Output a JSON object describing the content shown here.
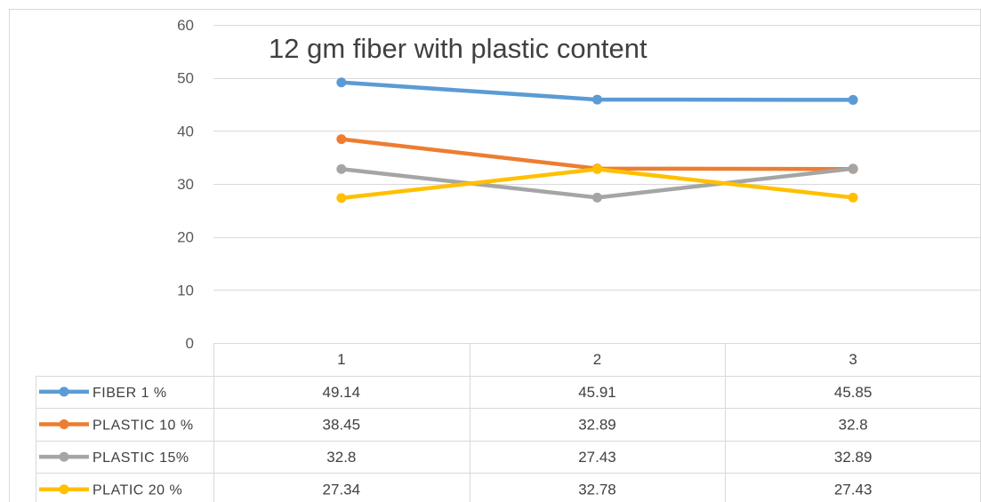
{
  "chart_data": {
    "type": "line",
    "title": "12 gm fiber with plastic content",
    "categories": [
      "1",
      "2",
      "3"
    ],
    "ylim": [
      0,
      60
    ],
    "yticks": [
      0,
      10,
      20,
      30,
      40,
      50,
      60
    ],
    "grid": true,
    "legend_placement": "data-table-left",
    "series": [
      {
        "name": "FIBER 1 %",
        "color": "#5B9BD5",
        "values": [
          49.14,
          45.91,
          45.85
        ]
      },
      {
        "name": "PLASTIC 10 %",
        "color": "#ED7D31",
        "values": [
          38.45,
          32.89,
          32.8
        ]
      },
      {
        "name": "PLASTIC 15%",
        "color": "#A5A5A5",
        "values": [
          32.8,
          27.43,
          32.89
        ]
      },
      {
        "name": "PLATIC 20 %",
        "color": "#FFC000",
        "values": [
          27.34,
          32.78,
          27.43
        ]
      }
    ]
  }
}
